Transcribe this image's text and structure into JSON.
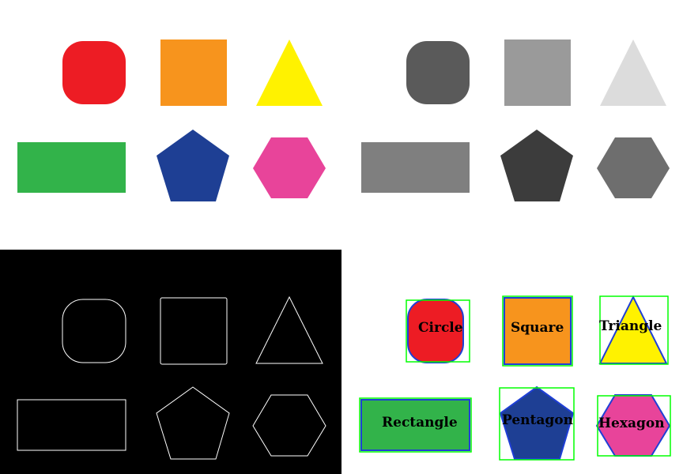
{
  "colors": {
    "circle": "#ed1c24",
    "square": "#f7941d",
    "triangle": "#fff200",
    "rectangle": "#32b34a",
    "pentagon": "#1e3f94",
    "hexagon": "#e8449a",
    "gray_circle": "#5a5a5a",
    "gray_square": "#9a9a9a",
    "gray_triangle": "#dcdcdc",
    "gray_rectangle": "#7f7f7f",
    "gray_pentagon": "#3c3c3c",
    "gray_hexagon": "#6e6e6e",
    "edge_background": "#000000",
    "edge_stroke": "#ffffff",
    "contour": "#1f3fd6",
    "bounding_box": "#00ff00"
  },
  "labels": {
    "circle": "Circle",
    "square": "Square",
    "triangle": "Triangle",
    "rectangle": "Rectangle",
    "pentagon": "Pentagon",
    "hexagon": "Hexagon"
  }
}
